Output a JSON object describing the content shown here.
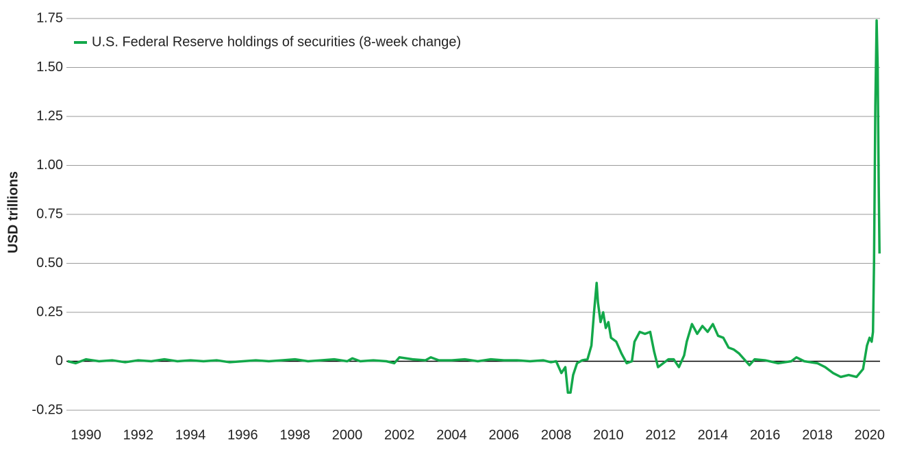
{
  "chart_data": {
    "type": "line",
    "y_label": "USD trillions",
    "xlim": [
      1989.25,
      2020.4
    ],
    "ylim": [
      -0.25,
      1.75
    ],
    "xticks": [
      1990,
      1992,
      1994,
      1996,
      1998,
      2000,
      2002,
      2004,
      2006,
      2008,
      2010,
      2012,
      2014,
      2016,
      2018,
      2020
    ],
    "yticks": [
      -0.25,
      0,
      0.25,
      {
        "value": 0.5,
        "label": "0.50"
      },
      0.75,
      {
        "value": 1,
        "label": "1.00"
      },
      1.25,
      {
        "value": 1.5,
        "label": "1.50"
      },
      1.75
    ],
    "grid": true,
    "legend": "upper left",
    "x": [
      1989.3,
      1989.6,
      1990,
      1990.5,
      1991,
      1991.5,
      1992,
      1992.5,
      1993,
      1993.5,
      1994,
      1994.5,
      1995,
      1995.5,
      1996,
      1996.5,
      1997,
      1997.5,
      1998,
      1998.5,
      1999,
      1999.5,
      2000,
      2000.2,
      2000.5,
      2001,
      2001.5,
      2001.8,
      2002,
      2002.5,
      2003,
      2003.2,
      2003.5,
      2004,
      2004.5,
      2005,
      2005.5,
      2006,
      2006.5,
      2007,
      2007.5,
      2007.8,
      2008,
      2008.2,
      2008.35,
      2008.45,
      2008.55,
      2008.65,
      2008.8,
      2009,
      2009.2,
      2009.35,
      2009.45,
      2009.55,
      2009.6,
      2009.7,
      2009.8,
      2009.9,
      2010,
      2010.1,
      2010.3,
      2010.5,
      2010.7,
      2010.9,
      2011,
      2011.2,
      2011.4,
      2011.6,
      2011.75,
      2011.9,
      2012.1,
      2012.3,
      2012.5,
      2012.7,
      2012.9,
      2013,
      2013.2,
      2013.4,
      2013.6,
      2013.8,
      2014,
      2014.2,
      2014.4,
      2014.6,
      2014.8,
      2015,
      2015.2,
      2015.4,
      2015.6,
      2016,
      2016.5,
      2017,
      2017.2,
      2017.5,
      2018,
      2018.3,
      2018.6,
      2018.9,
      2019.2,
      2019.5,
      2019.75,
      2019.9,
      2020.0,
      2020.08,
      2020.13,
      2020.17,
      2020.22,
      2020.27,
      2020.31,
      2020.35,
      2020.38
    ],
    "series": [
      {
        "name": "U.S. Federal Reserve holdings of securities (8-week change)",
        "color": "#13a84a",
        "values": [
          0,
          -0.01,
          0.01,
          0,
          0.005,
          -0.005,
          0.005,
          0,
          0.01,
          0,
          0.005,
          0,
          0.005,
          -0.005,
          0,
          0.005,
          0,
          0.005,
          0.01,
          0,
          0.005,
          0.01,
          0,
          0.015,
          0,
          0.005,
          0,
          -0.01,
          0.02,
          0.01,
          0.005,
          0.02,
          0.005,
          0.005,
          0.01,
          0,
          0.01,
          0.005,
          0.005,
          0,
          0.005,
          -0.005,
          0,
          -0.06,
          -0.03,
          -0.16,
          -0.16,
          -0.07,
          -0.01,
          0.005,
          0.01,
          0.08,
          0.25,
          0.4,
          0.3,
          0.2,
          0.25,
          0.17,
          0.2,
          0.12,
          0.1,
          0.04,
          -0.01,
          0,
          0.1,
          0.15,
          0.14,
          0.15,
          0.05,
          -0.03,
          -0.01,
          0.01,
          0.01,
          -0.03,
          0.03,
          0.1,
          0.19,
          0.14,
          0.18,
          0.15,
          0.19,
          0.13,
          0.12,
          0.07,
          0.06,
          0.04,
          0.01,
          -0.02,
          0.01,
          0.005,
          -0.01,
          0,
          0.02,
          0,
          -0.01,
          -0.03,
          -0.06,
          -0.08,
          -0.07,
          -0.08,
          -0.04,
          0.08,
          0.12,
          0.1,
          0.15,
          0.5,
          1.3,
          1.74,
          1.5,
          0.9,
          0.55
        ]
      }
    ]
  }
}
